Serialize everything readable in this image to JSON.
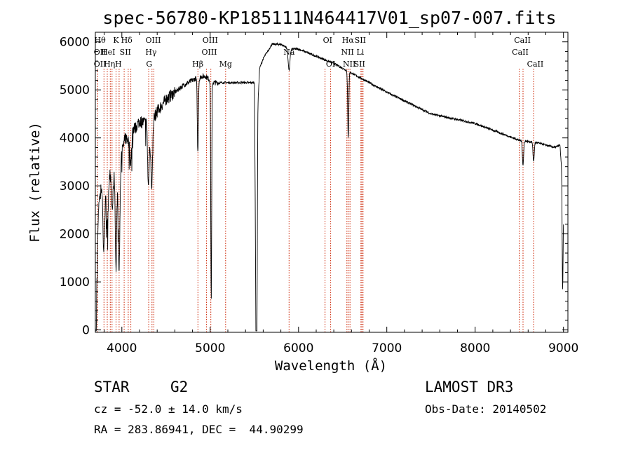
{
  "chart_data": {
    "type": "line",
    "title": "spec-56780-KP185111N464417V01_sp07-007.fits",
    "xlabel": "Wavelength (Å)",
    "ylabel": "Flux (relative)",
    "xlim": [
      3700,
      9050
    ],
    "ylim": [
      -50,
      6200
    ],
    "xticks": [
      4000,
      5000,
      6000,
      7000,
      8000,
      9000
    ],
    "yticks": [
      0,
      1000,
      2000,
      3000,
      4000,
      5000,
      6000
    ],
    "grid": false,
    "series": [
      {
        "name": "flux",
        "continuum": {
          "x": [
            3700,
            3720,
            3740,
            3780,
            3800,
            3840,
            3870,
            3900,
            3940,
            3960,
            3980,
            4000,
            4040,
            4080,
            4100,
            4150,
            4200,
            4300,
            4330,
            4360,
            4400,
            4500,
            4600,
            4700,
            4800,
            4850,
            4860,
            4900,
            4950,
            5000,
            5005,
            5020,
            5500,
            5520,
            5540,
            5560,
            5600,
            5650,
            5700,
            5800,
            5900,
            6000,
            6200,
            6400,
            6600,
            7000,
            7500,
            8000,
            8500,
            8700,
            8900,
            8960,
            8985,
            9000
          ],
          "y": [
            0,
            1500,
            2700,
            3100,
            2900,
            3100,
            3300,
            3200,
            3500,
            3000,
            3300,
            3700,
            4000,
            3950,
            4200,
            4200,
            4350,
            4300,
            3700,
            4400,
            4550,
            4800,
            4950,
            5100,
            5200,
            5250,
            5200,
            5280,
            5280,
            5200,
            4800,
            5150,
            5150,
            700,
            4700,
            5450,
            5650,
            5800,
            5950,
            5950,
            5850,
            5850,
            5700,
            5550,
            5350,
            4950,
            4500,
            4300,
            3950,
            3900,
            3800,
            3850,
            3200,
            2500
          ]
        },
        "absorption_lines": [
          {
            "x": 3705,
            "depth": 1700,
            "width": 6
          },
          {
            "x": 3795,
            "depth": 1300,
            "width": 10
          },
          {
            "x": 3835,
            "depth": 900,
            "width": 10
          },
          {
            "x": 3890,
            "depth": 700,
            "width": 10
          },
          {
            "x": 3934,
            "depth": 2200,
            "width": 8
          },
          {
            "x": 3969,
            "depth": 1900,
            "width": 8
          },
          {
            "x": 4101,
            "depth": 700,
            "width": 10
          },
          {
            "x": 4300,
            "depth": 1300,
            "width": 8
          },
          {
            "x": 4340,
            "depth": 900,
            "width": 8
          },
          {
            "x": 4860,
            "depth": 1500,
            "width": 6
          },
          {
            "x": 5012,
            "depth": 4300,
            "width": 5
          },
          {
            "x": 5525,
            "depth": 4300,
            "width": 6
          },
          {
            "x": 5893,
            "depth": 450,
            "width": 10
          },
          {
            "x": 6563,
            "depth": 1400,
            "width": 6
          },
          {
            "x": 8542,
            "depth": 500,
            "width": 7
          },
          {
            "x": 8662,
            "depth": 400,
            "width": 7
          },
          {
            "x": 8990,
            "depth": 2100,
            "width": 5
          }
        ]
      }
    ],
    "spectral_lines": [
      {
        "x": 3727,
        "labels": [
          "Hθ",
          "OII",
          "OII"
        ]
      },
      {
        "x": 3798,
        "labels": [
          "Hθ"
        ]
      },
      {
        "x": 3835,
        "labels": [
          "Hη"
        ]
      },
      {
        "x": 3869,
        "labels": [
          "He"
        ]
      },
      {
        "x": 3889,
        "labels": [
          "He"
        ]
      },
      {
        "x": 3934,
        "labels": [
          "K"
        ]
      },
      {
        "x": 3969,
        "labels": [
          "H"
        ]
      },
      {
        "x": 4026,
        "labels": [
          "HeI"
        ]
      },
      {
        "x": 4072,
        "labels": [
          "SII"
        ]
      },
      {
        "x": 4102,
        "labels": [
          "Hδ"
        ]
      },
      {
        "x": 4304,
        "labels": [
          "G"
        ]
      },
      {
        "x": 4341,
        "labels": [
          "Hγ"
        ]
      },
      {
        "x": 4363,
        "labels": [
          "OIII"
        ]
      },
      {
        "x": 4861,
        "labels": [
          "Hβ"
        ]
      },
      {
        "x": 4959,
        "labels": [
          "OIII"
        ]
      },
      {
        "x": 5007,
        "labels": [
          "OIII"
        ]
      },
      {
        "x": 5175,
        "labels": [
          "Mg"
        ]
      },
      {
        "x": 5893,
        "labels": [
          "Na"
        ]
      },
      {
        "x": 6300,
        "labels": [
          "OI"
        ]
      },
      {
        "x": 6364,
        "labels": [
          "OI"
        ]
      },
      {
        "x": 6548,
        "labels": [
          "NII"
        ]
      },
      {
        "x": 6563,
        "labels": [
          "Hα"
        ]
      },
      {
        "x": 6583,
        "labels": [
          "NII"
        ]
      },
      {
        "x": 6707,
        "labels": [
          "Li"
        ]
      },
      {
        "x": 6717,
        "labels": [
          "SII"
        ]
      },
      {
        "x": 6731,
        "labels": [
          "SII"
        ]
      },
      {
        "x": 8498,
        "labels": [
          "CaII"
        ]
      },
      {
        "x": 8542,
        "labels": [
          "CaII"
        ]
      },
      {
        "x": 8662,
        "labels": [
          "CaII"
        ]
      }
    ],
    "label_rows": [
      {
        "x": 3752,
        "row": 0,
        "text": "Hθ"
      },
      {
        "x": 3752,
        "row": 1,
        "text": "OII"
      },
      {
        "x": 3752,
        "row": 2,
        "text": "OII"
      },
      {
        "x": 3845,
        "row": 1,
        "text": "HeI"
      },
      {
        "x": 3860,
        "row": 2,
        "text": "Hη"
      },
      {
        "x": 3934,
        "row": 0,
        "text": "K"
      },
      {
        "x": 3960,
        "row": 2,
        "text": "H"
      },
      {
        "x": 4055,
        "row": 0,
        "text": "Hδ"
      },
      {
        "x": 4040,
        "row": 1,
        "text": "SII"
      },
      {
        "x": 4355,
        "row": 0,
        "text": "OIII"
      },
      {
        "x": 4330,
        "row": 1,
        "text": "Hγ"
      },
      {
        "x": 4310,
        "row": 2,
        "text": "G"
      },
      {
        "x": 5000,
        "row": 0,
        "text": "OIII"
      },
      {
        "x": 4990,
        "row": 1,
        "text": "OIII"
      },
      {
        "x": 4860,
        "row": 2,
        "text": "Hβ"
      },
      {
        "x": 5175,
        "row": 2,
        "text": "Mg"
      },
      {
        "x": 5893,
        "row": 1,
        "text": "Na"
      },
      {
        "x": 6330,
        "row": 0,
        "text": "OI"
      },
      {
        "x": 6364,
        "row": 2,
        "text": "OI"
      },
      {
        "x": 6560,
        "row": 0,
        "text": "Hα"
      },
      {
        "x": 6555,
        "row": 1,
        "text": "NII"
      },
      {
        "x": 6575,
        "row": 2,
        "text": "NII"
      },
      {
        "x": 6700,
        "row": 0,
        "text": "SII"
      },
      {
        "x": 6700,
        "row": 1,
        "text": "Li"
      },
      {
        "x": 6690,
        "row": 2,
        "text": "SII"
      },
      {
        "x": 8535,
        "row": 0,
        "text": "CaII"
      },
      {
        "x": 8510,
        "row": 1,
        "text": "CaII"
      },
      {
        "x": 8680,
        "row": 2,
        "text": "CaII"
      }
    ],
    "colors": {
      "spectrum": "#000000",
      "line_markers": "#cc2200",
      "axes": "#000000"
    }
  },
  "info": {
    "object_class": "STAR",
    "subclass": "G2",
    "survey": "LAMOST DR3",
    "redshift": "cz = -52.0 ± 14.0 km/s",
    "obs_date": "Obs-Date: 20140502",
    "coords": "RA = 283.86941, DEC =  44.90299"
  }
}
